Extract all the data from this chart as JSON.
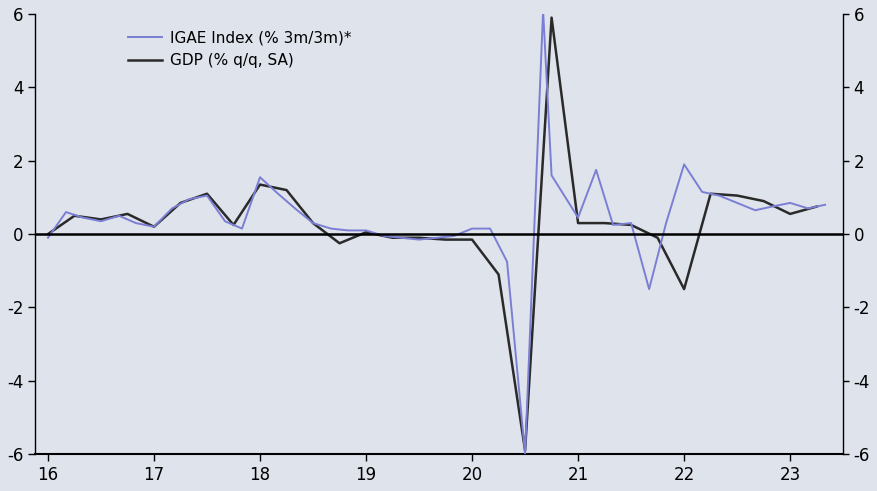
{
  "igae_x": [
    16.0,
    16.17,
    16.33,
    16.5,
    16.67,
    16.83,
    17.0,
    17.17,
    17.33,
    17.5,
    17.67,
    17.83,
    18.0,
    18.17,
    18.33,
    18.5,
    18.67,
    18.83,
    19.0,
    19.17,
    19.33,
    19.5,
    19.67,
    19.83,
    20.0,
    20.17,
    20.33,
    20.5,
    20.67,
    20.75,
    21.0,
    21.17,
    21.33,
    21.5,
    21.67,
    21.83,
    22.0,
    22.17,
    22.33,
    22.5,
    22.67,
    22.83,
    23.0,
    23.17,
    23.33
  ],
  "igae_y": [
    -0.1,
    0.6,
    0.45,
    0.35,
    0.5,
    0.3,
    0.2,
    0.7,
    0.95,
    1.05,
    0.35,
    0.15,
    1.55,
    1.1,
    0.7,
    0.3,
    0.15,
    0.1,
    0.1,
    -0.05,
    -0.1,
    -0.15,
    -0.1,
    -0.05,
    0.15,
    0.15,
    -0.75,
    -6.0,
    6.1,
    1.6,
    0.45,
    1.75,
    0.25,
    0.3,
    -1.5,
    0.3,
    1.9,
    1.15,
    1.05,
    0.85,
    0.65,
    0.75,
    0.85,
    0.7,
    0.8
  ],
  "gdp_x": [
    16.0,
    16.25,
    16.5,
    16.75,
    17.0,
    17.25,
    17.5,
    17.75,
    18.0,
    18.25,
    18.5,
    18.75,
    19.0,
    19.25,
    19.5,
    19.75,
    20.0,
    20.25,
    20.5,
    20.75,
    21.0,
    21.25,
    21.5,
    21.75,
    22.0,
    22.25,
    22.5,
    22.75,
    23.0,
    23.25
  ],
  "gdp_y": [
    0.0,
    0.5,
    0.4,
    0.55,
    0.2,
    0.85,
    1.1,
    0.25,
    1.35,
    1.2,
    0.3,
    -0.25,
    0.05,
    -0.1,
    -0.1,
    -0.15,
    -0.15,
    -1.1,
    -5.9,
    5.9,
    0.3,
    0.3,
    0.25,
    -0.1,
    -1.5,
    1.1,
    1.05,
    0.9,
    0.55,
    0.75
  ],
  "igae_color": "#7b7fd4",
  "gdp_color": "#2a2a2a",
  "background_color": "#dfe3ec",
  "ylim": [
    -6,
    6
  ],
  "xlim": [
    15.88,
    23.5
  ],
  "yticks": [
    -6,
    -4,
    -2,
    0,
    2,
    4,
    6
  ],
  "xticks": [
    16,
    17,
    18,
    19,
    20,
    21,
    22,
    23
  ],
  "legend_igae": "IGAE Index (% 3m/3m)*",
  "legend_gdp": "GDP (% q/q, SA)"
}
